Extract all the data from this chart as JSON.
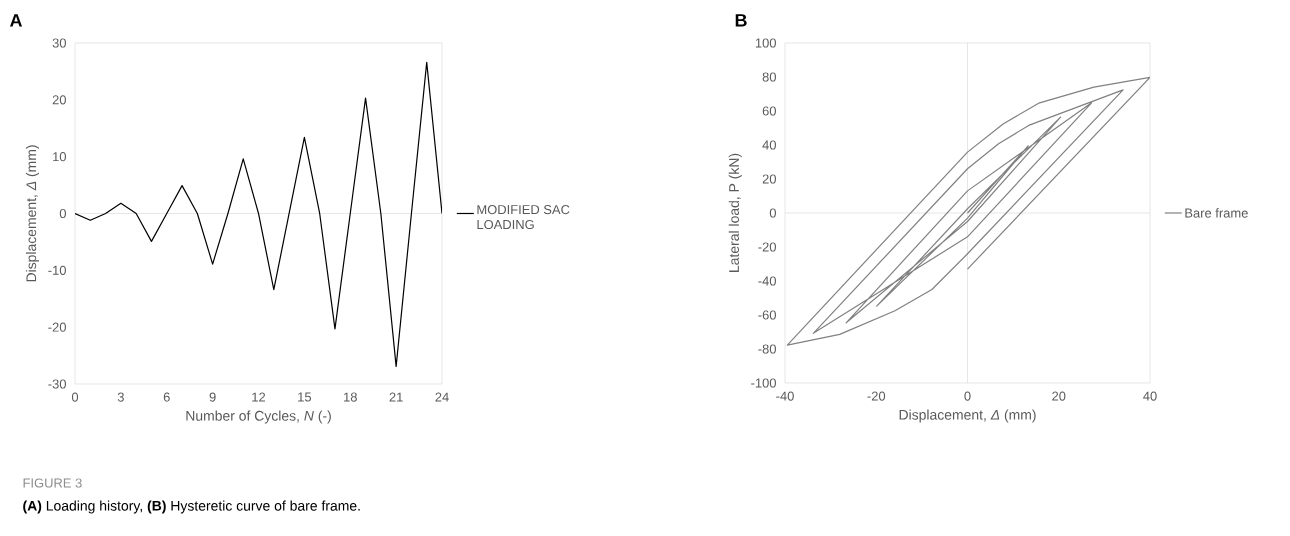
{
  "chart_data": [
    {
      "type": "line",
      "title": "A",
      "xlabel": "Number of Cycles, *N* (-)",
      "ylabel": "Displacement, *Δ* (mm)",
      "x": [
        0,
        1,
        2,
        3,
        4,
        5,
        6,
        7,
        8,
        9,
        10,
        11,
        12,
        13,
        14,
        15,
        16,
        17,
        18,
        19,
        20,
        21,
        22,
        23,
        24
      ],
      "series": [
        {
          "name": "MODIFIED SAC LOADING",
          "color": "#000000",
          "values": [
            0,
            -1.2,
            0,
            1.8,
            0,
            -4.9,
            0,
            4.9,
            0,
            -8.9,
            0,
            9.6,
            0,
            -13.4,
            0,
            13.4,
            0,
            -20.3,
            0,
            20.3,
            0,
            -26.9,
            0,
            26.6,
            0
          ]
        }
      ],
      "xlim": [
        0,
        24
      ],
      "xticks": [
        0,
        3,
        6,
        9,
        12,
        15,
        18,
        21,
        24
      ],
      "ylim": [
        -30,
        30
      ],
      "yticks": [
        -30,
        -20,
        -10,
        0,
        10,
        20,
        30
      ],
      "ref_lines": [
        {
          "axis": "y",
          "value": 0,
          "color": "#bfbfbf"
        }
      ],
      "legend": "right",
      "marker": "none",
      "line_style": "solid",
      "annotations": [
        "FIGURE 3",
        "**(A)** Loading history, **(B)** Hysteretic curve of bare frame."
      ]
    },
    {
      "type": "line",
      "title": "B",
      "xlabel": "Displacement, *Δ* (mm)",
      "ylabel": "Lateral load, P (kN)",
      "series": [
        {
          "name": "Bare frame",
          "color": "#808080",
          "x": [
            0,
            13.3,
            0,
            -19.9,
            0,
            20.4,
            0,
            -26.6,
            0,
            27.2,
            0,
            -33.8,
            0,
            6.8,
            13.4,
            34.1,
            0,
            -7.8,
            -15.9,
            -28,
            -39.5,
            0,
            7.8,
            15.6,
            27.7,
            40,
            0
          ],
          "values": [
            0,
            39.5,
            -3,
            -54.8,
            2.5,
            56.4,
            -5,
            -64.6,
            13,
            64.8,
            -14,
            -70.8,
            26,
            40.7,
            51.5,
            72.4,
            -24,
            -45,
            -57.5,
            -71.4,
            -77.7,
            35.8,
            52.4,
            64.6,
            74,
            79.8,
            -33
          ]
        }
      ],
      "xlim": [
        -40,
        40
      ],
      "xticks": [
        -40,
        -20,
        0,
        20,
        40
      ],
      "ylim": [
        -100,
        100
      ],
      "yticks": [
        -100,
        -80,
        -60,
        -40,
        -20,
        0,
        20,
        40,
        60,
        80,
        100
      ],
      "ref_lines": [
        {
          "axis": "x",
          "value": 0,
          "color": "#bfbfbf"
        },
        {
          "axis": "y",
          "value": 0,
          "color": "#bfbfbf"
        }
      ],
      "legend": "right",
      "marker": "none",
      "line_style": "solid"
    }
  ]
}
